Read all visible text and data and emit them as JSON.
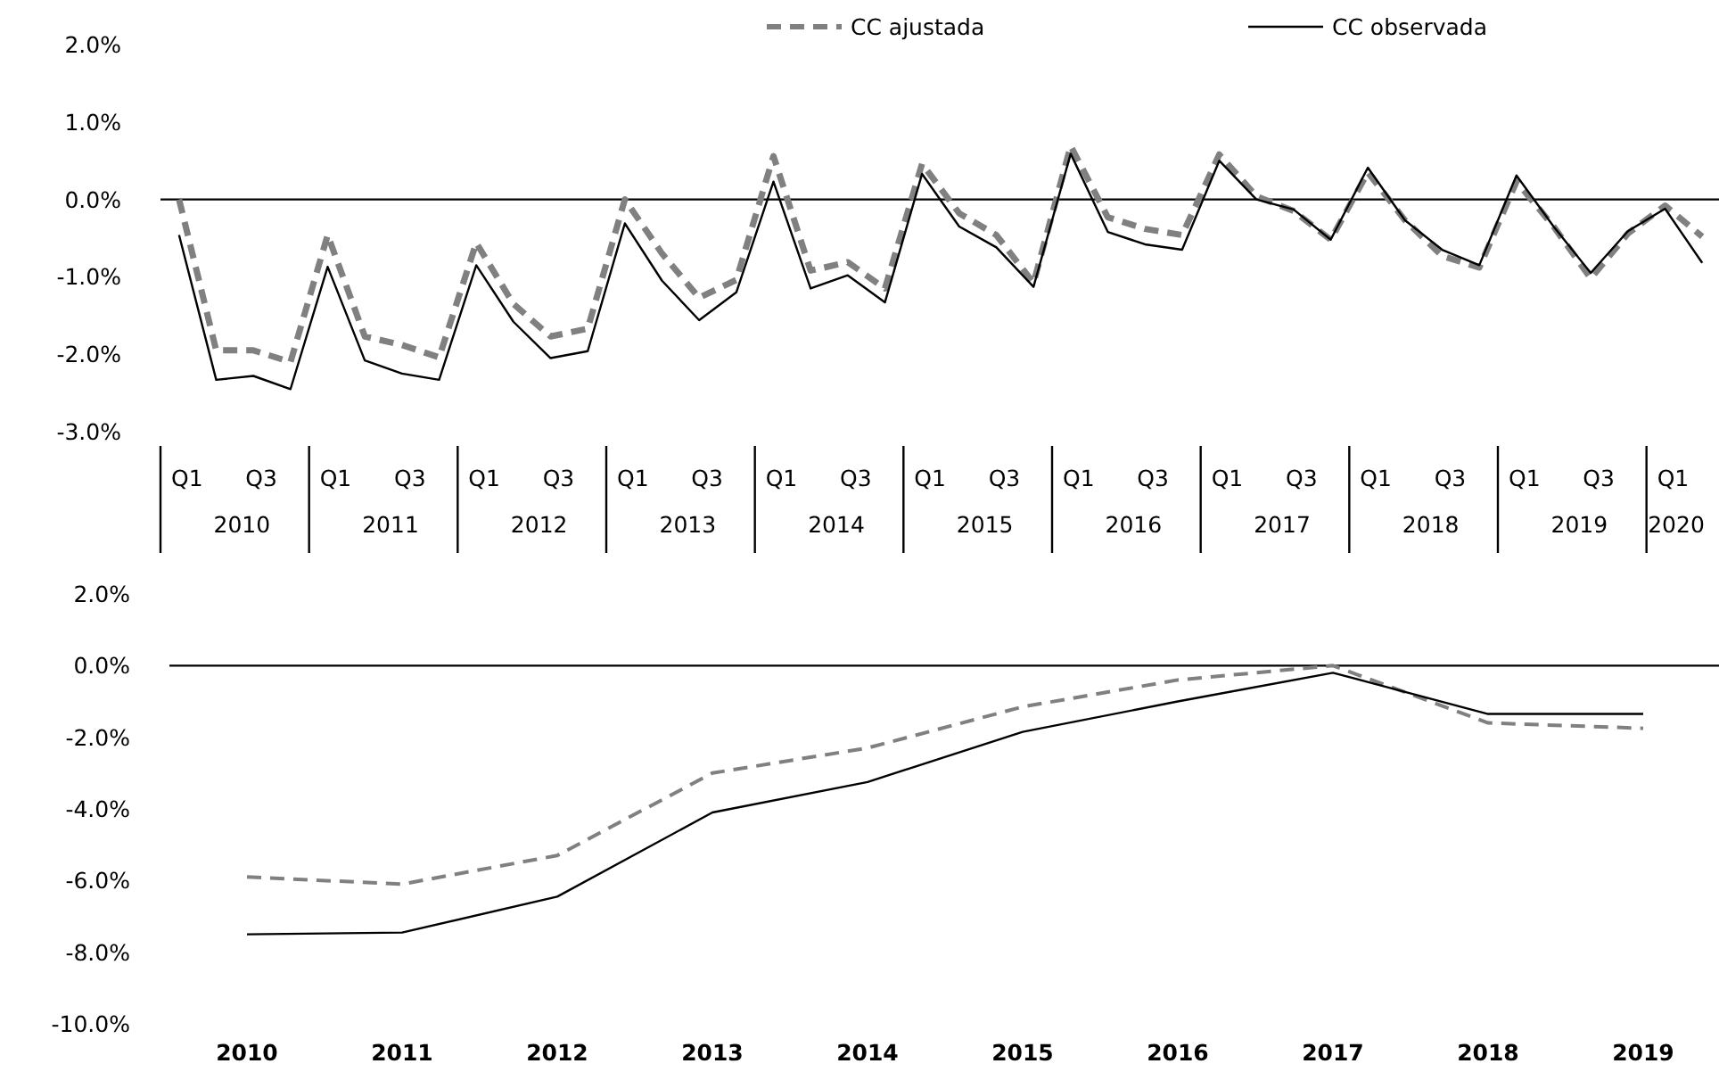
{
  "chart_data": [
    {
      "type": "line",
      "legend": "top",
      "categories": [
        "Q1",
        null,
        "Q3",
        null,
        "Q1",
        null,
        "Q3",
        null,
        "Q1",
        null,
        "Q3",
        null,
        "Q1",
        null,
        "Q3",
        null,
        "Q1",
        null,
        "Q3",
        null,
        "Q1",
        null,
        "Q3",
        null,
        "Q1",
        null,
        "Q3",
        null,
        "Q1",
        null,
        "Q3",
        null,
        "Q1",
        null,
        "Q3",
        null,
        "Q1",
        null,
        "Q3",
        null,
        "Q1",
        null
      ],
      "annotations": [
        "2010",
        "2011",
        "2012",
        "2013",
        "2014",
        "2015",
        "2016",
        "2017",
        "2018",
        "2019",
        "2020"
      ],
      "ylim": [
        -3,
        2
      ],
      "yticks": [
        {
          "value": -3,
          "label": "-3.0%"
        },
        {
          "value": -2,
          "label": "-2.0%"
        },
        {
          "value": -1,
          "label": "-1.0%"
        },
        {
          "value": 0,
          "label": "0.0%"
        },
        {
          "value": 1,
          "label": "1.0%"
        },
        {
          "value": 2,
          "label": "2.0%"
        }
      ],
      "ref_lines": [
        {
          "axis": "y",
          "value": 0,
          "color": "#000000"
        }
      ],
      "series": [
        {
          "name": "CC ajustada",
          "color": "#808080",
          "line_style": "dashed",
          "values": [
            0.0,
            -1.95,
            -1.95,
            -2.1,
            -0.46,
            -1.77,
            -1.88,
            -2.04,
            -0.56,
            -1.35,
            -1.77,
            -1.67,
            0.0,
            -0.7,
            -1.27,
            -1.04,
            0.56,
            -0.92,
            -0.81,
            -1.15,
            0.46,
            -0.18,
            -0.46,
            -1.08,
            0.69,
            -0.23,
            -0.38,
            -0.46,
            0.58,
            0.04,
            -0.15,
            -0.52,
            0.35,
            -0.27,
            -0.73,
            -0.88,
            0.23,
            -0.35,
            -1.02,
            -0.44,
            -0.08,
            -0.48
          ]
        },
        {
          "name": "CC observada",
          "color": "#000000",
          "line_style": "solid",
          "values": [
            -0.46,
            -2.33,
            -2.28,
            -2.45,
            -0.87,
            -2.08,
            -2.25,
            -2.33,
            -0.85,
            -1.58,
            -2.05,
            -1.96,
            -0.31,
            -1.05,
            -1.56,
            -1.2,
            0.23,
            -1.15,
            -0.98,
            -1.33,
            0.33,
            -0.35,
            -0.62,
            -1.13,
            0.59,
            -0.42,
            -0.58,
            -0.65,
            0.5,
            0.0,
            -0.13,
            -0.52,
            0.41,
            -0.27,
            -0.65,
            -0.85,
            0.31,
            -0.35,
            -0.95,
            -0.41,
            -0.12,
            -0.82
          ]
        }
      ]
    },
    {
      "type": "line",
      "categories": [
        "2010",
        "2011",
        "2012",
        "2013",
        "2014",
        "2015",
        "2016",
        "2017",
        "2018",
        "2019"
      ],
      "ylim": [
        -10,
        2
      ],
      "yticks": [
        {
          "value": -10,
          "label": "-10.0%"
        },
        {
          "value": -8,
          "label": "-8.0%"
        },
        {
          "value": -6,
          "label": "-6.0%"
        },
        {
          "value": -4,
          "label": "-4.0%"
        },
        {
          "value": -2,
          "label": "-2.0%"
        },
        {
          "value": 0,
          "label": "0.0%"
        },
        {
          "value": 2,
          "label": "2.0%"
        }
      ],
      "ref_lines": [
        {
          "axis": "y",
          "value": 0,
          "color": "#000000"
        }
      ],
      "series": [
        {
          "color": "#808080",
          "line_style": "dashed",
          "values": [
            -5.9,
            -6.1,
            -5.3,
            -3.0,
            -2.3,
            -1.15,
            -0.4,
            0.0,
            -1.6,
            -1.75
          ]
        },
        {
          "color": "#000000",
          "line_style": "solid",
          "values": [
            -7.5,
            -7.45,
            -6.45,
            -4.1,
            -3.25,
            -1.85,
            -1.0,
            -0.2,
            -1.35,
            -1.35
          ]
        }
      ]
    }
  ]
}
